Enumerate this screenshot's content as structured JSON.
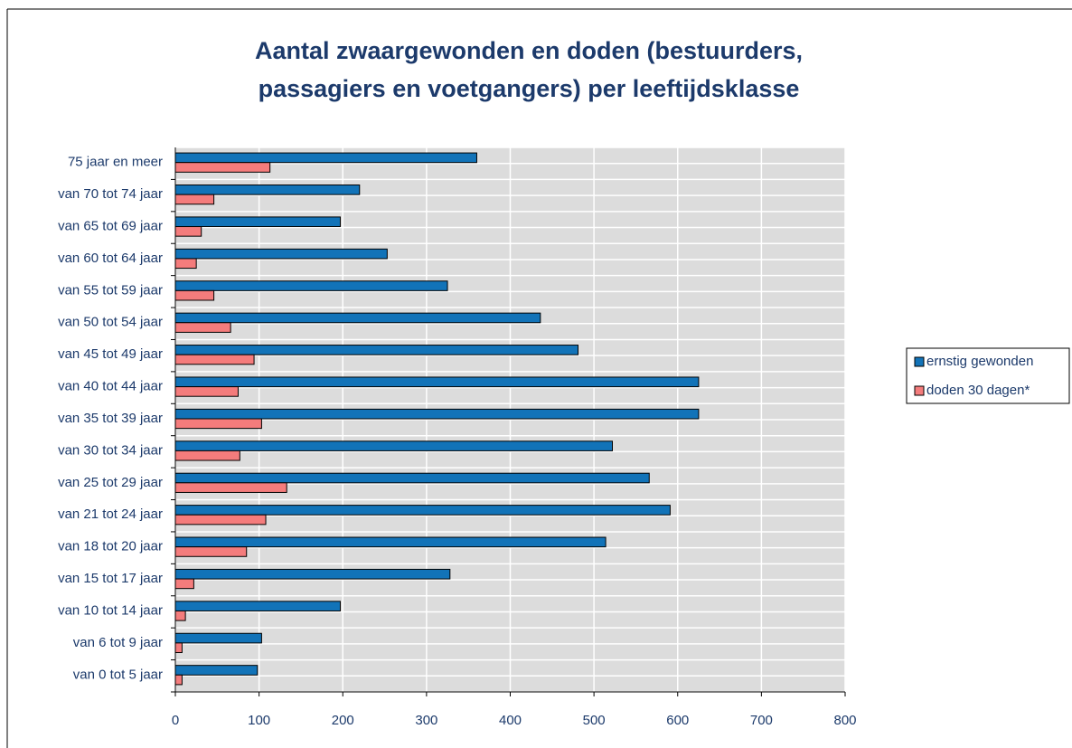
{
  "chart_data": {
    "type": "hbar",
    "title": [
      "Aantal zwaargewonden en doden (bestuurders,",
      "passagiers en voetgangers) per leeftijdsklasse"
    ],
    "categories": [
      "van 0 tot 5 jaar",
      "van 6 tot 9 jaar",
      "van 10 tot 14 jaar",
      "van 15 tot 17 jaar",
      "van 18 tot 20 jaar",
      "van 21 tot 24 jaar",
      "van 25 tot 29 jaar",
      "van 30 tot 34 jaar",
      "van 35 tot 39 jaar",
      "van 40 tot 44 jaar",
      "van 45 tot 49 jaar",
      "van 50 tot 54 jaar",
      "van 55 tot 59 jaar",
      "van 60 tot 64 jaar",
      "van 65 tot 69 jaar",
      "van 70 tot 74 jaar",
      "75 jaar en meer"
    ],
    "series": [
      {
        "name": "ernstig gewonden",
        "color": "#1273b8",
        "values": [
          98,
          103,
          197,
          328,
          514,
          591,
          566,
          522,
          625,
          625,
          481,
          436,
          325,
          253,
          197,
          220,
          360
        ]
      },
      {
        "name": "doden 30 dagen*",
        "color": "#f47c7c",
        "values": [
          8,
          8,
          12,
          22,
          85,
          108,
          133,
          77,
          103,
          75,
          94,
          66,
          46,
          25,
          31,
          46,
          113
        ]
      }
    ],
    "xlim": [
      0,
      800
    ],
    "xticks": [
      0,
      100,
      200,
      300,
      400,
      500,
      600,
      700,
      800
    ],
    "grid": true,
    "legend": "right"
  }
}
